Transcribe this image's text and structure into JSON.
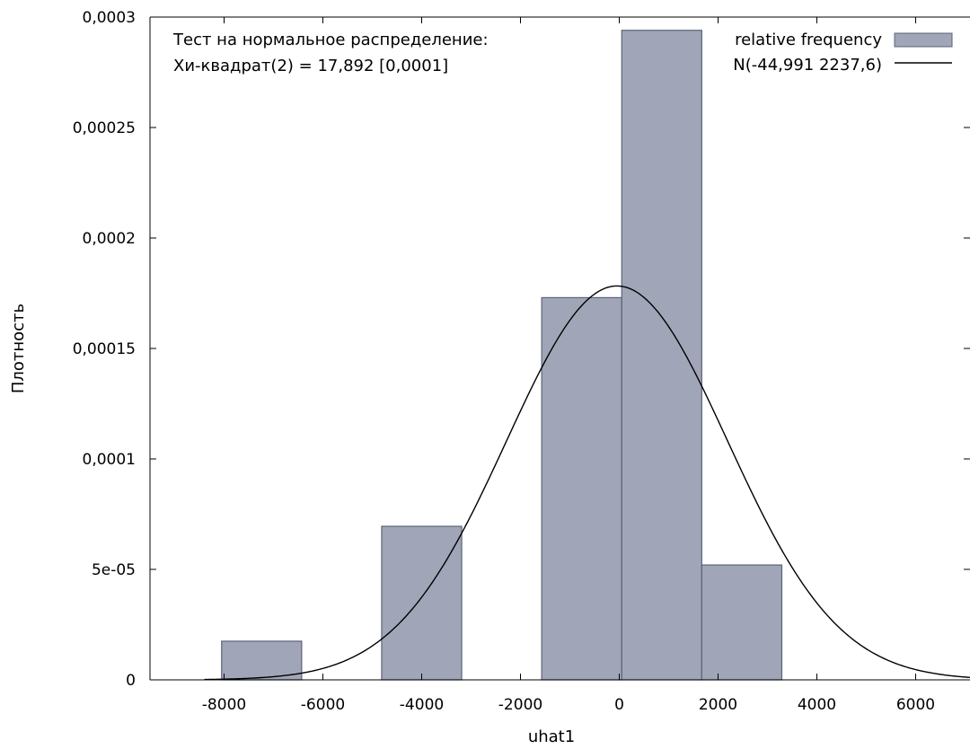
{
  "chart_data": {
    "type": "bar",
    "xlabel": "uhat1",
    "ylabel": "Плотность",
    "xlim": [
      -9500,
      7100
    ],
    "ylim": [
      0,
      0.0003
    ],
    "grid": false,
    "legend_position": "top-right",
    "x_ticks": [
      -8000,
      -6000,
      -4000,
      -2000,
      0,
      2000,
      4000,
      6000
    ],
    "x_tick_labels": [
      "-8000",
      "-6000",
      "-4000",
      "-2000",
      "0",
      "2000",
      "4000",
      "6000"
    ],
    "y_ticks": [
      0,
      5e-05,
      0.0001,
      0.00015,
      0.0002,
      0.00025,
      0.0003
    ],
    "y_tick_labels": [
      "0",
      "5e-05",
      "0,0001",
      "0,00015",
      "0,0002",
      "0,00025",
      "0,0003"
    ],
    "annotations": [
      "Тест на нормальное распределение:",
      "Хи-квадрат(2) = 17,892 [0,0001]"
    ],
    "series": [
      {
        "name": "relative frequency",
        "kind": "histogram",
        "color": "#a0a6b7",
        "edge_color": "#5c6378",
        "bins": [
          {
            "x0": -8050,
            "x1": -6430,
            "value": 1.75e-05
          },
          {
            "x0": -6430,
            "x1": -4810,
            "value": 0
          },
          {
            "x0": -4810,
            "x1": -3190,
            "value": 6.95e-05
          },
          {
            "x0": -3190,
            "x1": -1570,
            "value": 0
          },
          {
            "x0": -1570,
            "x1": 50,
            "value": 0.000173
          },
          {
            "x0": 50,
            "x1": 1670,
            "value": 0.000294
          },
          {
            "x0": 1670,
            "x1": 3290,
            "value": 5.2e-05
          }
        ]
      },
      {
        "name": "N(-44,991 2237,6)",
        "kind": "normal-curve",
        "color": "#000000",
        "mean": -44.991,
        "sd": 2237.6
      }
    ]
  }
}
